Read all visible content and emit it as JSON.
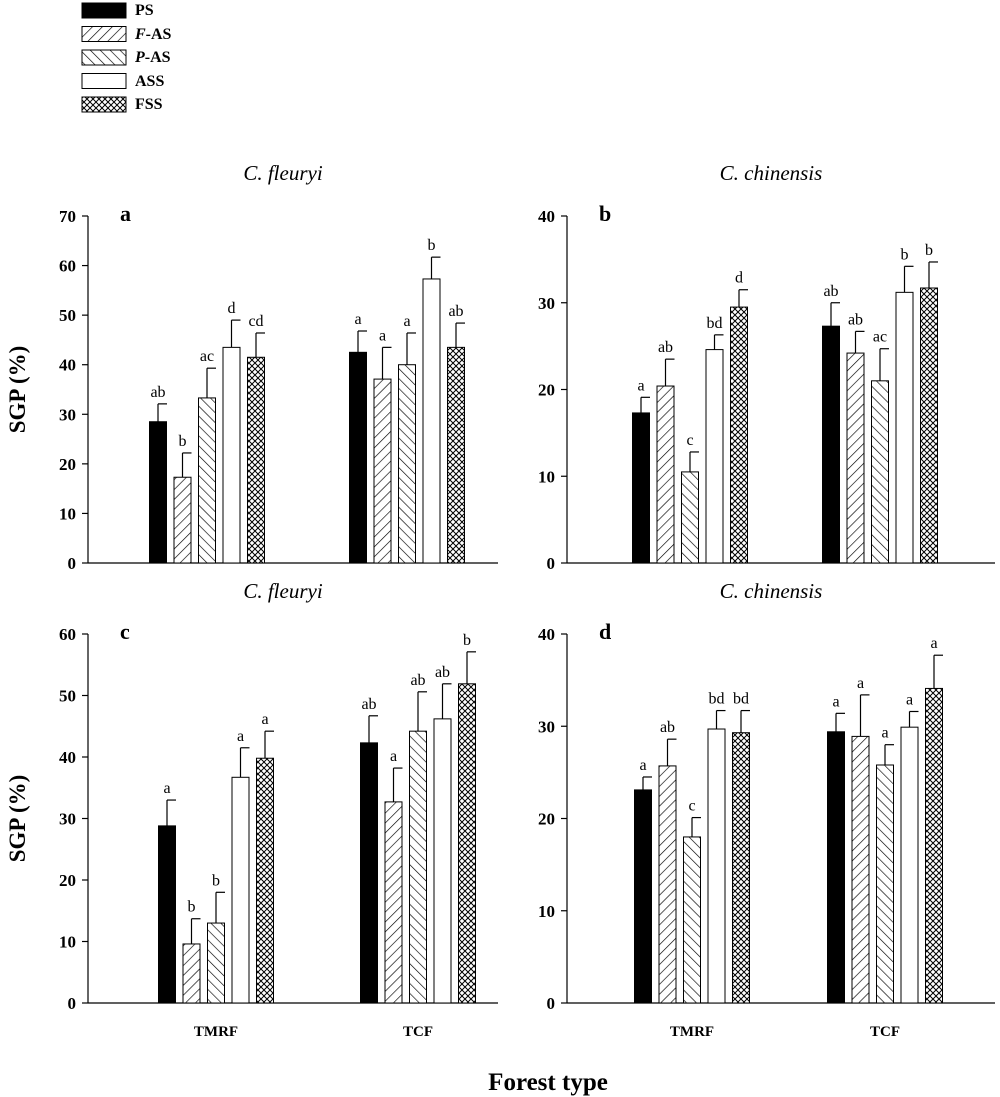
{
  "legend": {
    "position": "top-left",
    "items": [
      {
        "name": "PS",
        "pattern": "solid-black"
      },
      {
        "name": "F-AS",
        "italic_prefix": "F",
        "pattern": "forward-hatch"
      },
      {
        "name": "P-AS",
        "italic_prefix": "P",
        "pattern": "back-hatch"
      },
      {
        "name": "ASS",
        "pattern": "white"
      },
      {
        "name": "FSS",
        "pattern": "cross-hatch"
      }
    ]
  },
  "shared_xlabel": "Forest type",
  "chart_data": [
    {
      "type": "bar",
      "panel": "a",
      "title": "C. fleuryi",
      "ylabel": "SGP (%)",
      "ylim": [
        0,
        70
      ],
      "yticks": [
        0,
        10,
        20,
        30,
        40,
        50,
        60,
        70
      ],
      "series": [
        {
          "name": "PS",
          "values": [
            28.5,
            42.5
          ],
          "errors": [
            3.6,
            4.3
          ],
          "letters": [
            "ab",
            "a"
          ]
        },
        {
          "name": "F-AS",
          "values": [
            17.3,
            37.1
          ],
          "errors": [
            4.9,
            6.4
          ],
          "letters": [
            "b",
            "a"
          ]
        },
        {
          "name": "P-AS",
          "values": [
            33.3,
            40.0
          ],
          "errors": [
            6.0,
            6.4
          ],
          "letters": [
            "ac",
            "a"
          ]
        },
        {
          "name": "ASS",
          "values": [
            43.5,
            57.3
          ],
          "errors": [
            5.5,
            4.4
          ],
          "letters": [
            "d",
            "b"
          ]
        },
        {
          "name": "FSS",
          "values": [
            41.5,
            43.5
          ],
          "errors": [
            4.9,
            4.9
          ],
          "letters": [
            "cd",
            "ab"
          ]
        }
      ]
    },
    {
      "type": "bar",
      "panel": "b",
      "title": "C. chinensis",
      "ylabel": "",
      "ylim": [
        0,
        40
      ],
      "yticks": [
        0,
        10,
        20,
        30,
        40
      ],
      "series": [
        {
          "name": "PS",
          "values": [
            17.3,
            27.3
          ],
          "errors": [
            1.8,
            2.7
          ],
          "letters": [
            "a",
            "ab"
          ]
        },
        {
          "name": "F-AS",
          "values": [
            20.4,
            24.2
          ],
          "errors": [
            3.1,
            2.5
          ],
          "letters": [
            "ab",
            "ab"
          ]
        },
        {
          "name": "P-AS",
          "values": [
            10.5,
            21.0
          ],
          "errors": [
            2.3,
            3.7
          ],
          "letters": [
            "c",
            "ac"
          ]
        },
        {
          "name": "ASS",
          "values": [
            24.6,
            31.2
          ],
          "errors": [
            1.7,
            3.0
          ],
          "letters": [
            "bd",
            "b"
          ]
        },
        {
          "name": "FSS",
          "values": [
            29.5,
            31.7
          ],
          "errors": [
            2.0,
            3.0
          ],
          "letters": [
            "d",
            "b"
          ]
        }
      ]
    },
    {
      "type": "bar",
      "panel": "c",
      "title": "C. fleuryi",
      "ylabel": "SGP (%)",
      "categories": [
        "TMRF",
        "TCF"
      ],
      "ylim": [
        0,
        60
      ],
      "yticks": [
        0,
        10,
        20,
        30,
        40,
        50,
        60
      ],
      "series": [
        {
          "name": "PS",
          "values": [
            28.8,
            42.3
          ],
          "errors": [
            4.2,
            4.4
          ],
          "letters": [
            "a",
            "ab"
          ]
        },
        {
          "name": "F-AS",
          "values": [
            9.6,
            32.7
          ],
          "errors": [
            4.1,
            5.5
          ],
          "letters": [
            "b",
            "a"
          ]
        },
        {
          "name": "P-AS",
          "values": [
            13.0,
            44.2
          ],
          "errors": [
            5.0,
            6.4
          ],
          "letters": [
            "b",
            "ab"
          ]
        },
        {
          "name": "ASS",
          "values": [
            36.7,
            46.2
          ],
          "errors": [
            4.8,
            5.7
          ],
          "letters": [
            "a",
            "ab"
          ]
        },
        {
          "name": "FSS",
          "values": [
            39.8,
            51.9
          ],
          "errors": [
            4.4,
            5.2
          ],
          "letters": [
            "a",
            "b"
          ]
        }
      ]
    },
    {
      "type": "bar",
      "panel": "d",
      "title": "C. chinensis",
      "ylabel": "",
      "categories": [
        "TMRF",
        "TCF"
      ],
      "ylim": [
        0,
        40
      ],
      "yticks": [
        0,
        10,
        20,
        30,
        40
      ],
      "series": [
        {
          "name": "PS",
          "values": [
            23.1,
            29.4
          ],
          "errors": [
            1.4,
            2.0
          ],
          "letters": [
            "a",
            "a"
          ]
        },
        {
          "name": "F-AS",
          "values": [
            25.7,
            28.9
          ],
          "errors": [
            2.9,
            4.5
          ],
          "letters": [
            "ab",
            "a"
          ]
        },
        {
          "name": "P-AS",
          "values": [
            18.0,
            25.8
          ],
          "errors": [
            2.1,
            2.2
          ],
          "letters": [
            "c",
            "a"
          ]
        },
        {
          "name": "ASS",
          "values": [
            29.7,
            29.9
          ],
          "errors": [
            2.0,
            1.7
          ],
          "letters": [
            "bd",
            "a"
          ]
        },
        {
          "name": "FSS",
          "values": [
            29.3,
            34.1
          ],
          "errors": [
            2.4,
            3.6
          ],
          "letters": [
            "bd",
            "a"
          ]
        }
      ]
    }
  ]
}
